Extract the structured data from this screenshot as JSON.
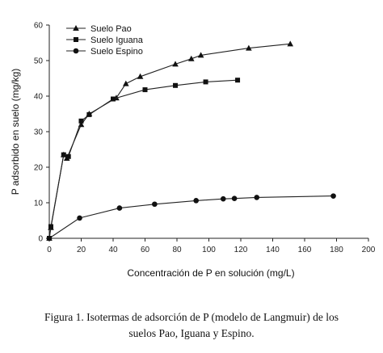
{
  "chart_data": {
    "type": "line",
    "xlabel": "Concentración de P en solución (mg/L)",
    "ylabel": "P adsorbido en suelo (mg/kg)",
    "xlim": [
      0,
      200
    ],
    "ylim": [
      0,
      60
    ],
    "x_ticks": [
      "0",
      "20",
      "40",
      "60",
      "80",
      "100",
      "120",
      "140",
      "160",
      "180",
      "200"
    ],
    "y_ticks": [
      "0",
      "10",
      "20",
      "30",
      "40",
      "50",
      "60"
    ],
    "grid": false,
    "legend_position": "top-left",
    "series": [
      {
        "name": "Suelo Pao",
        "marker": "triangle",
        "x": [
          0,
          1,
          9,
          11,
          20,
          25,
          42,
          48,
          57,
          79,
          89,
          95,
          125,
          151
        ],
        "y": [
          0,
          3,
          23.5,
          22.5,
          32,
          35,
          39.5,
          43.5,
          45.5,
          49,
          50.5,
          51.5,
          53.5,
          54.7
        ]
      },
      {
        "name": "Suelo Iguana",
        "marker": "square",
        "x": [
          0,
          1,
          9,
          12,
          20,
          25,
          40,
          60,
          79,
          98,
          118
        ],
        "y": [
          0,
          3.3,
          23.5,
          23,
          33,
          34.8,
          39.2,
          41.8,
          43,
          44,
          44.5
        ]
      },
      {
        "name": "Suelo Espino",
        "marker": "circle",
        "x": [
          0,
          19,
          44,
          66,
          92,
          109,
          116,
          130,
          178
        ],
        "y": [
          0,
          5.7,
          8.5,
          9.6,
          10.6,
          11.1,
          11.2,
          11.5,
          11.9
        ]
      }
    ]
  },
  "caption": {
    "line1": "Figura 1. Isotermas de adsorción de P (modelo de Langmuir) de los",
    "line2": "suelos Pao, Iguana y Espino."
  }
}
